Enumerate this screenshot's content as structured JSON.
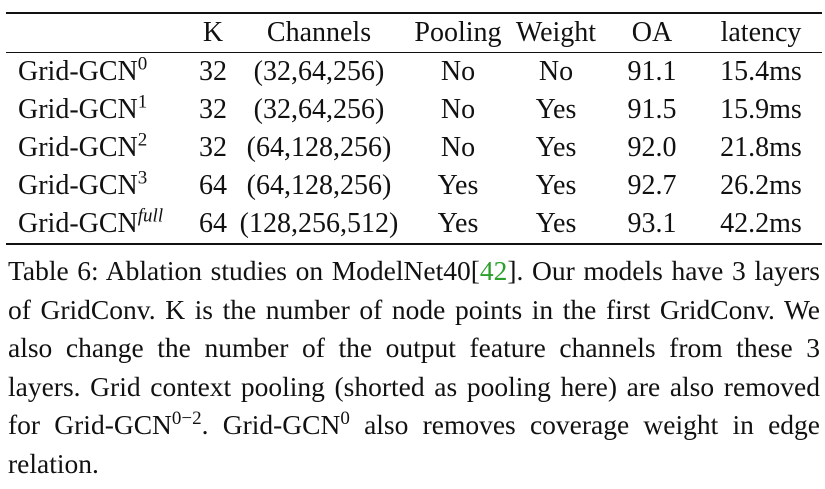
{
  "table": {
    "headers": [
      "",
      "K",
      "Channels",
      "Pooling",
      "Weight",
      "OA",
      "latency"
    ],
    "rows": [
      {
        "name": "Grid-GCN",
        "sup": "0",
        "k": "32",
        "channels": "(32,64,256)",
        "pooling": "No",
        "weight": "No",
        "oa": "91.1",
        "latency": "15.4ms"
      },
      {
        "name": "Grid-GCN",
        "sup": "1",
        "k": "32",
        "channels": "(32,64,256)",
        "pooling": "No",
        "weight": "Yes",
        "oa": "91.5",
        "latency": "15.9ms"
      },
      {
        "name": "Grid-GCN",
        "sup": "2",
        "k": "32",
        "channels": "(64,128,256)",
        "pooling": "No",
        "weight": "Yes",
        "oa": "92.0",
        "latency": "21.8ms"
      },
      {
        "name": "Grid-GCN",
        "sup": "3",
        "k": "64",
        "channels": "(64,128,256)",
        "pooling": "Yes",
        "weight": "Yes",
        "oa": "92.7",
        "latency": "26.2ms"
      },
      {
        "name": "Grid-GCN",
        "sup": "full",
        "k": "64",
        "channels": "(128,256,512)",
        "pooling": "Yes",
        "weight": "Yes",
        "oa": "93.1",
        "latency": "42.2ms"
      }
    ]
  },
  "caption": {
    "part1": "Table 6: Ablation studies on ModelNet40[",
    "cite": "42",
    "part2": "]. Our models have 3 layers of GridConv.  K is the number of node points in the first GridConv. We also change the number of the output feature channels from these 3 layers.  Grid context pooling (shorted as pooling here) are also removed for Grid-GCN",
    "sup1": "0−2",
    "part3": ".  Grid-GCN",
    "sup2": "0",
    "part4": " also removes coverage weight in edge relation."
  },
  "colors": {
    "citation": "#2ca02c"
  }
}
